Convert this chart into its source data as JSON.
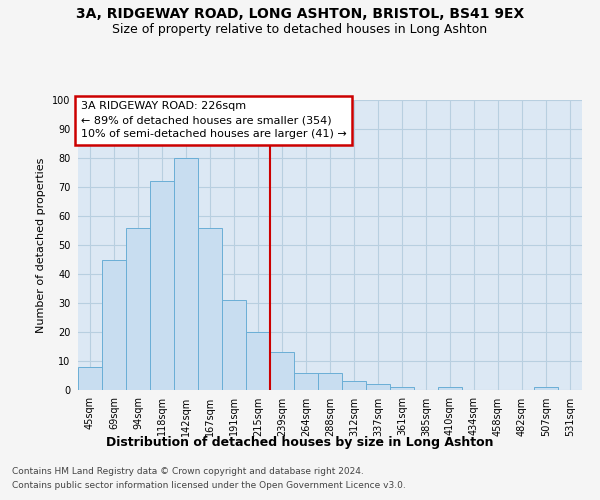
{
  "title1": "3A, RIDGEWAY ROAD, LONG ASHTON, BRISTOL, BS41 9EX",
  "title2": "Size of property relative to detached houses in Long Ashton",
  "xlabel": "Distribution of detached houses by size in Long Ashton",
  "ylabel": "Number of detached properties",
  "categories": [
    "45sqm",
    "69sqm",
    "94sqm",
    "118sqm",
    "142sqm",
    "167sqm",
    "191sqm",
    "215sqm",
    "239sqm",
    "264sqm",
    "288sqm",
    "312sqm",
    "337sqm",
    "361sqm",
    "385sqm",
    "410sqm",
    "434sqm",
    "458sqm",
    "482sqm",
    "507sqm",
    "531sqm"
  ],
  "values": [
    8,
    45,
    56,
    72,
    80,
    56,
    31,
    20,
    13,
    6,
    6,
    3,
    2,
    1,
    0,
    1,
    0,
    0,
    0,
    1,
    0
  ],
  "bar_color": "#c8ddf0",
  "bar_edge_color": "#6aaed6",
  "vline_index": 7,
  "vline_color": "#cc0000",
  "annotation_line1": "3A RIDGEWAY ROAD: 226sqm",
  "annotation_line2": "← 89% of detached houses are smaller (354)",
  "annotation_line3": "10% of semi-detached houses are larger (41) →",
  "annotation_box_edgecolor": "#cc0000",
  "ylim": [
    0,
    100
  ],
  "yticks": [
    0,
    10,
    20,
    30,
    40,
    50,
    60,
    70,
    80,
    90,
    100
  ],
  "grid_color": "#b8cfe0",
  "plot_bg_color": "#dce8f4",
  "fig_bg_color": "#f5f5f5",
  "footer1": "Contains HM Land Registry data © Crown copyright and database right 2024.",
  "footer2": "Contains public sector information licensed under the Open Government Licence v3.0.",
  "title1_fontsize": 10,
  "title2_fontsize": 9,
  "ylabel_fontsize": 8,
  "xlabel_fontsize": 9,
  "tick_fontsize": 7,
  "footer_fontsize": 6.5
}
